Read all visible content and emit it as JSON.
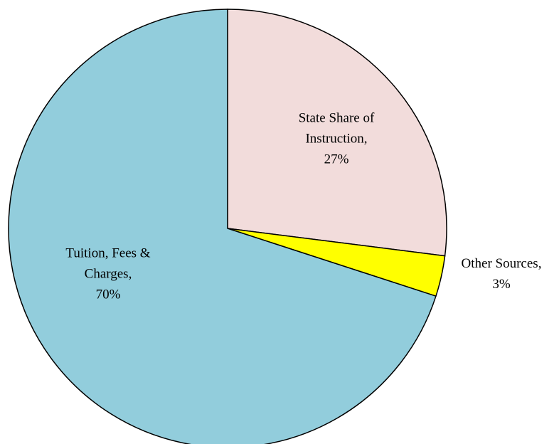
{
  "chart_data": {
    "type": "pie",
    "categories": [
      "State Share of Instruction,",
      "Other Sources,",
      "Tuition, Fees & Charges,"
    ],
    "values": [
      27,
      3,
      70
    ],
    "value_labels": [
      "27%",
      "3%",
      "70%"
    ],
    "colors": [
      "#f2dcdb",
      "#ffff00",
      "#92cddc"
    ]
  }
}
